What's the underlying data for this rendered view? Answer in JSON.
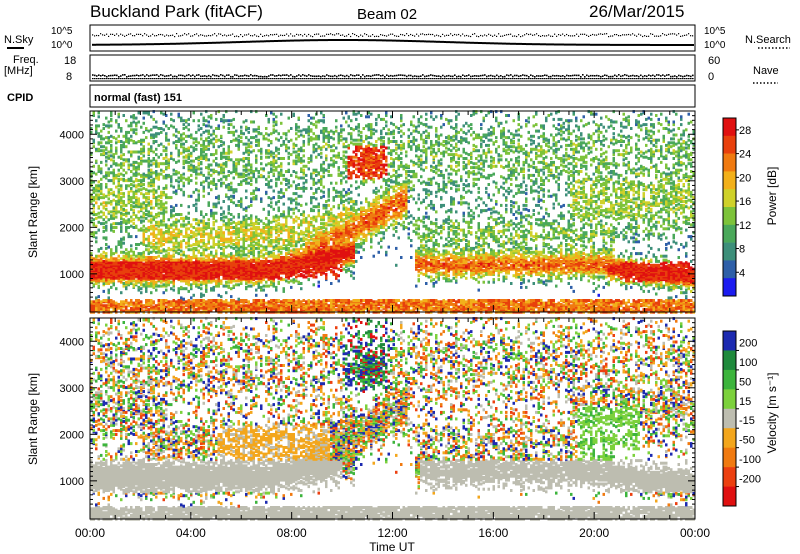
{
  "header": {
    "title": "Buckland Park (fitACF)",
    "beam": "Beam 02",
    "date": "26/Mar/2015"
  },
  "summary_panels": {
    "nsky_label": "N.Sky",
    "nsky_ticks": [
      "10^5",
      "10^0"
    ],
    "nsearch_label": "N.Search",
    "nsearch_ticks": [
      "10^5",
      "10^0"
    ],
    "freq_label_1": "Freq.",
    "freq_label_2": "[MHz]",
    "freq_ticks": [
      "18",
      "8"
    ],
    "nave_label": "Nave",
    "nave_ticks": [
      "60",
      "0"
    ],
    "cpid_label": "CPID",
    "cpid_value": "normal (fast) 151"
  },
  "chart_data": [
    {
      "type": "heatmap",
      "name": "power",
      "xlabel": "Time UT",
      "ylabel": "Slant Range [km]",
      "xlim": [
        "00:00",
        "24:00"
      ],
      "ylim": [
        180,
        4500
      ],
      "x_ticks": [
        "00:00",
        "04:00",
        "08:00",
        "12:00",
        "16:00",
        "20:00",
        "00:00"
      ],
      "y_ticks": [
        1000,
        2000,
        3000,
        4000
      ],
      "colorbar": {
        "label": "Power [dB]",
        "ticks": [
          4,
          8,
          12,
          16,
          20,
          24,
          28
        ],
        "range": [
          0,
          30
        ],
        "colors": [
          "#1c1cf0",
          "#2e5fa8",
          "#3d8f7a",
          "#4aa85a",
          "#7dc33a",
          "#cfd12a",
          "#f2b01a",
          "#f07a10",
          "#e8400c",
          "#e01010"
        ]
      },
      "features": [
        {
          "desc": "dense ground scatter band",
          "t_start": "00:00",
          "t_end": "10:00",
          "range_km": [
            800,
            1400
          ],
          "power_db": 28
        },
        {
          "desc": "rising scatter",
          "t_start": "09:00",
          "t_end": "12:00",
          "range_km": [
            1300,
            2000
          ],
          "power_db": 22
        },
        {
          "desc": "intense patch",
          "t_center": "11:00",
          "range_km": [
            3100,
            3700
          ],
          "power_db": 28
        },
        {
          "desc": "afternoon band",
          "t_start": "13:00",
          "t_end": "20:30",
          "range_km": [
            900,
            1500
          ],
          "power_db": 20
        },
        {
          "desc": "evening band",
          "t_start": "21:00",
          "t_end": "24:00",
          "range_km": [
            800,
            1200
          ],
          "power_db": 28
        }
      ]
    },
    {
      "type": "heatmap",
      "name": "velocity",
      "xlabel": "Time UT",
      "ylabel": "Slant Range [km]",
      "xlim": [
        "00:00",
        "24:00"
      ],
      "ylim": [
        180,
        4500
      ],
      "x_ticks": [
        "00:00",
        "04:00",
        "08:00",
        "12:00",
        "16:00",
        "20:00",
        "00:00"
      ],
      "y_ticks": [
        1000,
        2000,
        3000,
        4000
      ],
      "colorbar": {
        "label": "Velocity [m s⁻¹]",
        "ticks": [
          "200",
          "100",
          "50",
          "15",
          "-15",
          "-50",
          "-100",
          "-200"
        ],
        "colors": [
          "#1c2ab0",
          "#1f8a3c",
          "#3cb43c",
          "#7cd13c",
          "#bdbdb0",
          "#f3a61c",
          "#f07a10",
          "#ec4010",
          "#e01010"
        ]
      },
      "ground_scatter_color": "#bdbdb0",
      "features": [
        {
          "desc": "ground scatter (grey)",
          "t_start": "00:00",
          "t_end": "24:00",
          "range_km": [
            700,
            2300
          ]
        },
        {
          "desc": "negative velocities",
          "t_start": "05:00",
          "t_end": "09:00",
          "range_km": [
            1200,
            2000
          ],
          "velocity": -50
        },
        {
          "desc": "mixed patch",
          "t_center": "11:00",
          "range_km": [
            2900,
            3800
          ],
          "velocity": 100
        },
        {
          "desc": "positive band",
          "t_start": "19:30",
          "t_end": "21:30",
          "range_km": [
            1300,
            2500
          ],
          "velocity": 50
        }
      ]
    }
  ]
}
